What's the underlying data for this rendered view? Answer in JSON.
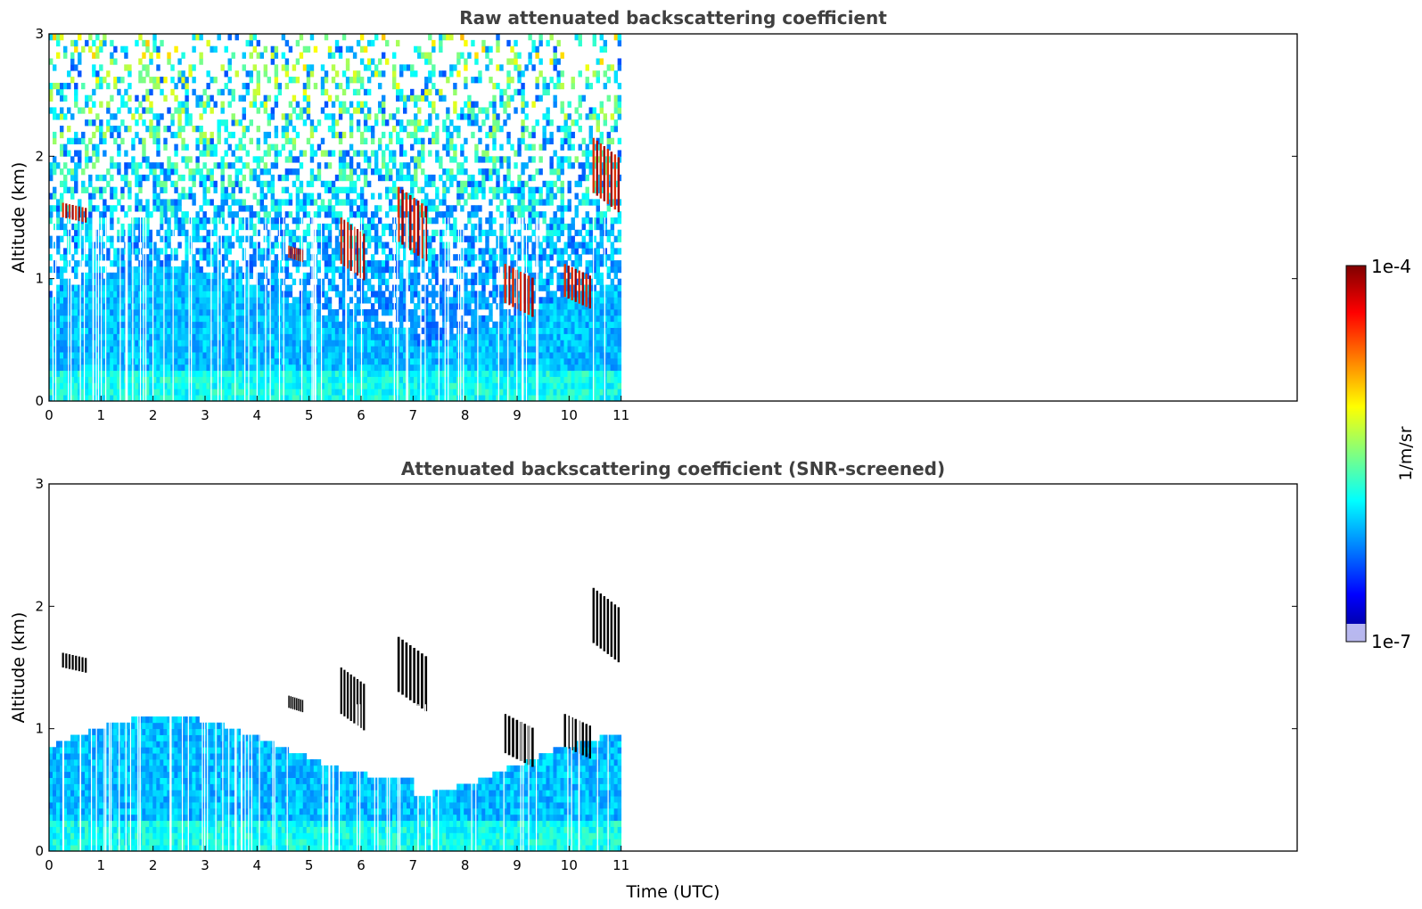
{
  "chart_data": [
    {
      "type": "heatmap",
      "title": "Raw attenuated backscattering coefficient",
      "xlabel": "",
      "ylabel": "Altitude (km)",
      "xlim": [
        0,
        24
      ],
      "ylim": [
        0,
        3
      ],
      "xticks": [
        "0",
        "1",
        "2",
        "3",
        "4",
        "5",
        "6",
        "7",
        "8",
        "9",
        "10",
        "11"
      ],
      "yticks": [
        "0",
        "1",
        "2",
        "3"
      ],
      "data_extent_hours": [
        0,
        11
      ],
      "screened": false,
      "features": [
        {
          "kind": "cloud",
          "t0": 0.25,
          "t1": 0.75,
          "h0": 1.5,
          "h1": 1.62
        },
        {
          "kind": "cloud",
          "t0": 4.6,
          "t1": 4.9,
          "h0": 1.17,
          "h1": 1.27
        },
        {
          "kind": "cloud",
          "t0": 5.6,
          "t1": 6.1,
          "h0": 1.12,
          "h1": 1.5
        },
        {
          "kind": "cloud",
          "t0": 6.7,
          "t1": 7.3,
          "h0": 1.3,
          "h1": 1.75
        },
        {
          "kind": "cloud",
          "t0": 8.75,
          "t1": 9.35,
          "h0": 0.8,
          "h1": 1.12
        },
        {
          "kind": "cloud",
          "t0": 9.9,
          "t1": 10.45,
          "h0": 0.85,
          "h1": 1.12
        },
        {
          "kind": "cloud",
          "t0": 10.45,
          "t1": 11.0,
          "h0": 1.7,
          "h1": 2.15
        }
      ]
    },
    {
      "type": "heatmap",
      "title": "Attenuated backscattering coefficient (SNR-screened)",
      "xlabel": "Time (UTC)",
      "ylabel": "Altitude (km)",
      "xlim": [
        0,
        24
      ],
      "ylim": [
        0,
        3
      ],
      "xticks": [
        "0",
        "1",
        "2",
        "3",
        "4",
        "5",
        "6",
        "7",
        "8",
        "9",
        "10",
        "11"
      ],
      "yticks": [
        "0",
        "1",
        "2",
        "3"
      ],
      "data_extent_hours": [
        0,
        11
      ],
      "screened": true,
      "features": [
        {
          "kind": "cloud",
          "t0": 0.25,
          "t1": 0.75,
          "h0": 1.5,
          "h1": 1.62
        },
        {
          "kind": "cloud",
          "t0": 4.6,
          "t1": 4.9,
          "h0": 1.17,
          "h1": 1.27
        },
        {
          "kind": "cloud",
          "t0": 5.6,
          "t1": 6.1,
          "h0": 1.12,
          "h1": 1.5
        },
        {
          "kind": "cloud",
          "t0": 6.7,
          "t1": 7.3,
          "h0": 1.3,
          "h1": 1.75
        },
        {
          "kind": "cloud",
          "t0": 8.75,
          "t1": 9.35,
          "h0": 0.8,
          "h1": 1.12
        },
        {
          "kind": "cloud",
          "t0": 9.9,
          "t1": 10.45,
          "h0": 0.85,
          "h1": 1.12
        },
        {
          "kind": "cloud",
          "t0": 10.45,
          "t1": 11.0,
          "h0": 1.7,
          "h1": 2.15
        }
      ]
    }
  ],
  "colorbar": {
    "label": "1/m/sr",
    "max_label": "1e-4",
    "min_label": "1e-7",
    "scale": "log",
    "colormap": "jet",
    "colors": [
      "#000080",
      "#0000ff",
      "#0080ff",
      "#00ffff",
      "#80ff80",
      "#ffff00",
      "#ff8000",
      "#ff0000",
      "#800000"
    ]
  }
}
